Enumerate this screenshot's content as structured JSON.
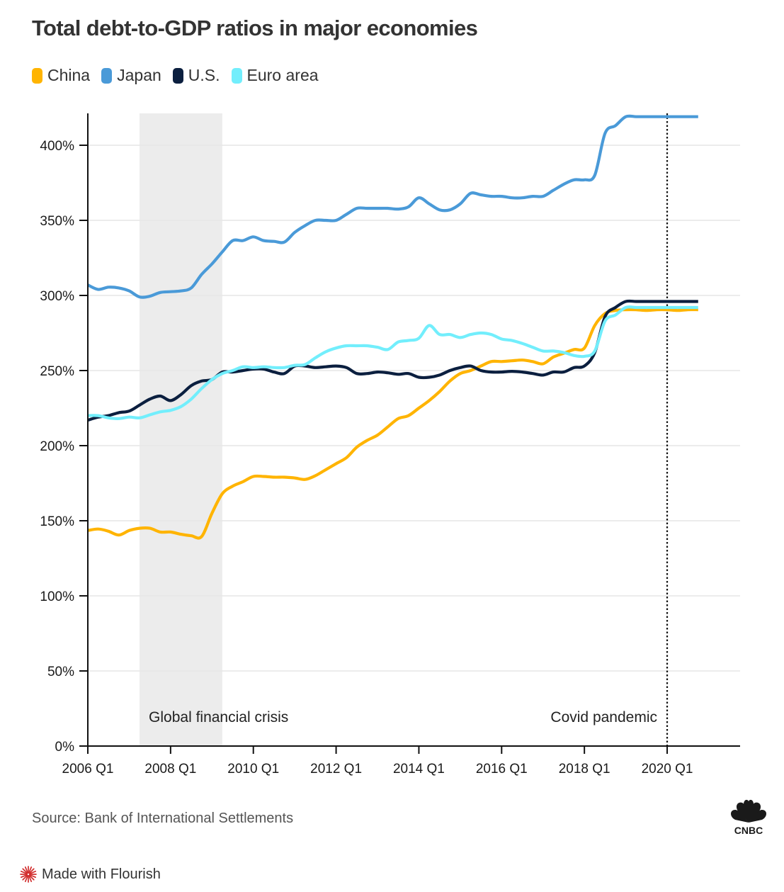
{
  "chart_data": {
    "type": "line",
    "title": "Total debt-to-GDP ratios in major economies",
    "xlabel": "",
    "ylabel": "",
    "x_start": "2006 Q1",
    "x_end": "2020 Q4",
    "x_tick_labels": [
      "2006 Q1",
      "2008 Q1",
      "2010 Q1",
      "2012 Q1",
      "2014 Q1",
      "2016 Q1",
      "2018 Q1",
      "2020 Q1"
    ],
    "x_tick_years": [
      2006,
      2008,
      2010,
      2012,
      2014,
      2016,
      2018,
      2020
    ],
    "x_range_years": [
      2006,
      2021.8
    ],
    "y_tick_values": [
      0,
      50,
      100,
      150,
      200,
      250,
      300,
      350,
      400
    ],
    "y_tick_labels": [
      "0%",
      "50%",
      "100%",
      "150%",
      "200%",
      "250%",
      "300%",
      "350%",
      "400%"
    ],
    "ylim": [
      0,
      420
    ],
    "grid": "horizontal",
    "legend_position": "top-left",
    "series": [
      {
        "name": "China",
        "color": "#FFB400",
        "values": [
          143.5,
          144.5,
          143,
          140.5,
          143.5,
          145,
          145,
          142.5,
          142.5,
          141,
          140,
          139.5,
          155,
          168,
          173,
          176,
          179.5,
          179.5,
          179,
          179,
          178.5,
          177.5,
          180,
          184,
          188,
          192,
          199,
          203.5,
          207,
          212.5,
          218,
          220,
          225,
          230,
          236,
          243,
          248,
          250,
          253,
          256,
          256,
          256.5,
          257,
          256,
          254.5,
          259,
          261.5,
          264,
          265,
          280,
          288,
          290,
          290.5,
          290.5,
          290,
          290.5,
          290.5,
          290,
          290.5,
          290.5
        ]
      },
      {
        "name": "Japan",
        "color": "#4A9AD8",
        "values": [
          307,
          304,
          305.5,
          305,
          303,
          299,
          299.5,
          302,
          302.5,
          303,
          305,
          314,
          321,
          329,
          336.5,
          336.5,
          339,
          336.5,
          336,
          335.5,
          342,
          346.5,
          350,
          350,
          350,
          354,
          358,
          358,
          358,
          358,
          357.5,
          359,
          365,
          361,
          357,
          357,
          361,
          368,
          367,
          366,
          366,
          365,
          365,
          366,
          366,
          370,
          374,
          377,
          377,
          380,
          408,
          413,
          419,
          419,
          419,
          419,
          419,
          419,
          419,
          419
        ]
      },
      {
        "name": "U.S.",
        "color": "#0B1F3F",
        "values": [
          217,
          219,
          220,
          222,
          223,
          227,
          231,
          233,
          230,
          234,
          240,
          243,
          244,
          249,
          249,
          250,
          251,
          251,
          249,
          248,
          253,
          253,
          252,
          252.5,
          253,
          252,
          248,
          248,
          249,
          248.5,
          247.5,
          248,
          245.5,
          245.5,
          247,
          250,
          252,
          253,
          250,
          249,
          249,
          249.5,
          249,
          248,
          247,
          249,
          249,
          252,
          253,
          262,
          286,
          292,
          296,
          296,
          296,
          296,
          296,
          296,
          296,
          296
        ]
      },
      {
        "name": "Euro area",
        "color": "#72EEFC",
        "values": [
          220,
          220,
          218.5,
          218,
          219,
          218.5,
          220.5,
          222.5,
          223.5,
          226,
          231,
          238,
          244,
          248,
          250,
          252.5,
          252,
          252.5,
          252,
          252,
          253.5,
          254,
          258.5,
          262.5,
          265,
          266.5,
          266.5,
          266.5,
          265.5,
          264,
          269,
          270,
          271.5,
          280,
          274,
          274,
          272,
          274,
          275,
          274,
          271,
          270,
          268,
          265.5,
          263,
          263,
          262,
          260,
          259.5,
          263,
          283,
          287,
          292,
          292,
          292,
          292,
          292,
          292,
          292,
          292
        ]
      }
    ],
    "series_end_index": 59,
    "annotations": [
      {
        "label": "Global financial crisis",
        "type": "shaded-band",
        "from": "2007 Q2",
        "to": "2009 Q2"
      },
      {
        "label": "Covid pandemic",
        "type": "dotted-vertical-line",
        "at": "2020 Q1"
      }
    ]
  },
  "legend": [
    {
      "label": "China",
      "color": "#FFB400"
    },
    {
      "label": "Japan",
      "color": "#4A9AD8"
    },
    {
      "label": "U.S.",
      "color": "#0B1F3F"
    },
    {
      "label": "Euro area",
      "color": "#72EEFC"
    }
  ],
  "footer": {
    "source": "Source: Bank of International Settlements",
    "brand_logo": "CNBC",
    "made_with": "Made with Flourish"
  }
}
